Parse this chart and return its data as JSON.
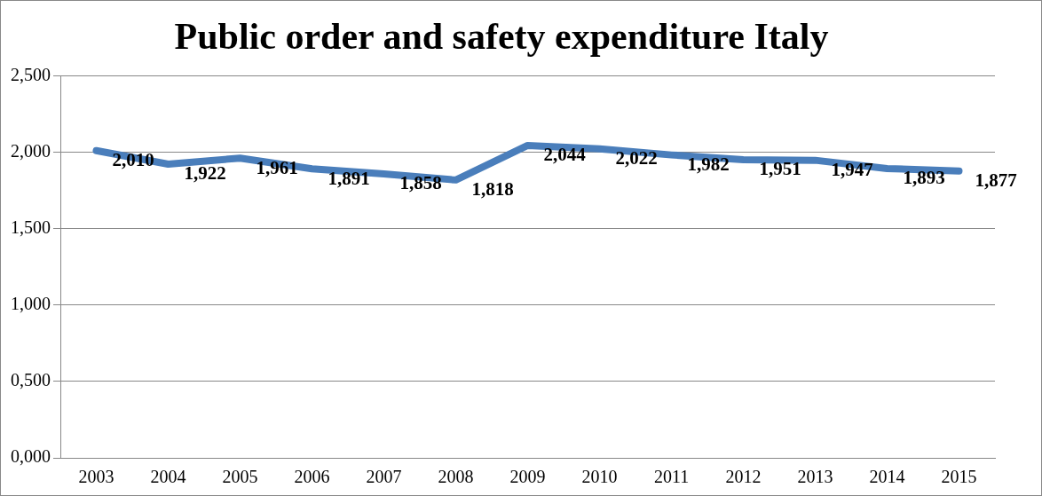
{
  "chart_data": {
    "type": "line",
    "title": "Public order and safety expenditure Italy",
    "categories": [
      "2003",
      "2004",
      "2005",
      "2006",
      "2007",
      "2008",
      "2009",
      "2010",
      "2011",
      "2012",
      "2013",
      "2014",
      "2015"
    ],
    "series": [
      {
        "color": "#4a7ebb",
        "values": [
          2.01,
          1.922,
          1.961,
          1.891,
          1.858,
          1.818,
          2.044,
          2.022,
          1.982,
          1.951,
          1.947,
          1.893,
          1.877
        ],
        "value_labels": [
          "2,010",
          "1,922",
          "1,961",
          "1,891",
          "1,858",
          "1,818",
          "2,044",
          "2,022",
          "1,982",
          "1,951",
          "1,947",
          "1,893",
          "1,877"
        ]
      }
    ],
    "ylim": [
      0,
      2.5
    ],
    "yticks": [
      {
        "value": 0,
        "label": "0,000"
      },
      {
        "value": 0.5,
        "label": "0,500"
      },
      {
        "value": 1,
        "label": "1,000"
      },
      {
        "value": 1.5,
        "label": "1,500"
      },
      {
        "value": 2,
        "label": "2,000"
      },
      {
        "value": 2.5,
        "label": "2,500"
      }
    ],
    "grid": "y",
    "legend": false,
    "marker": "none",
    "line_style": "solid"
  }
}
